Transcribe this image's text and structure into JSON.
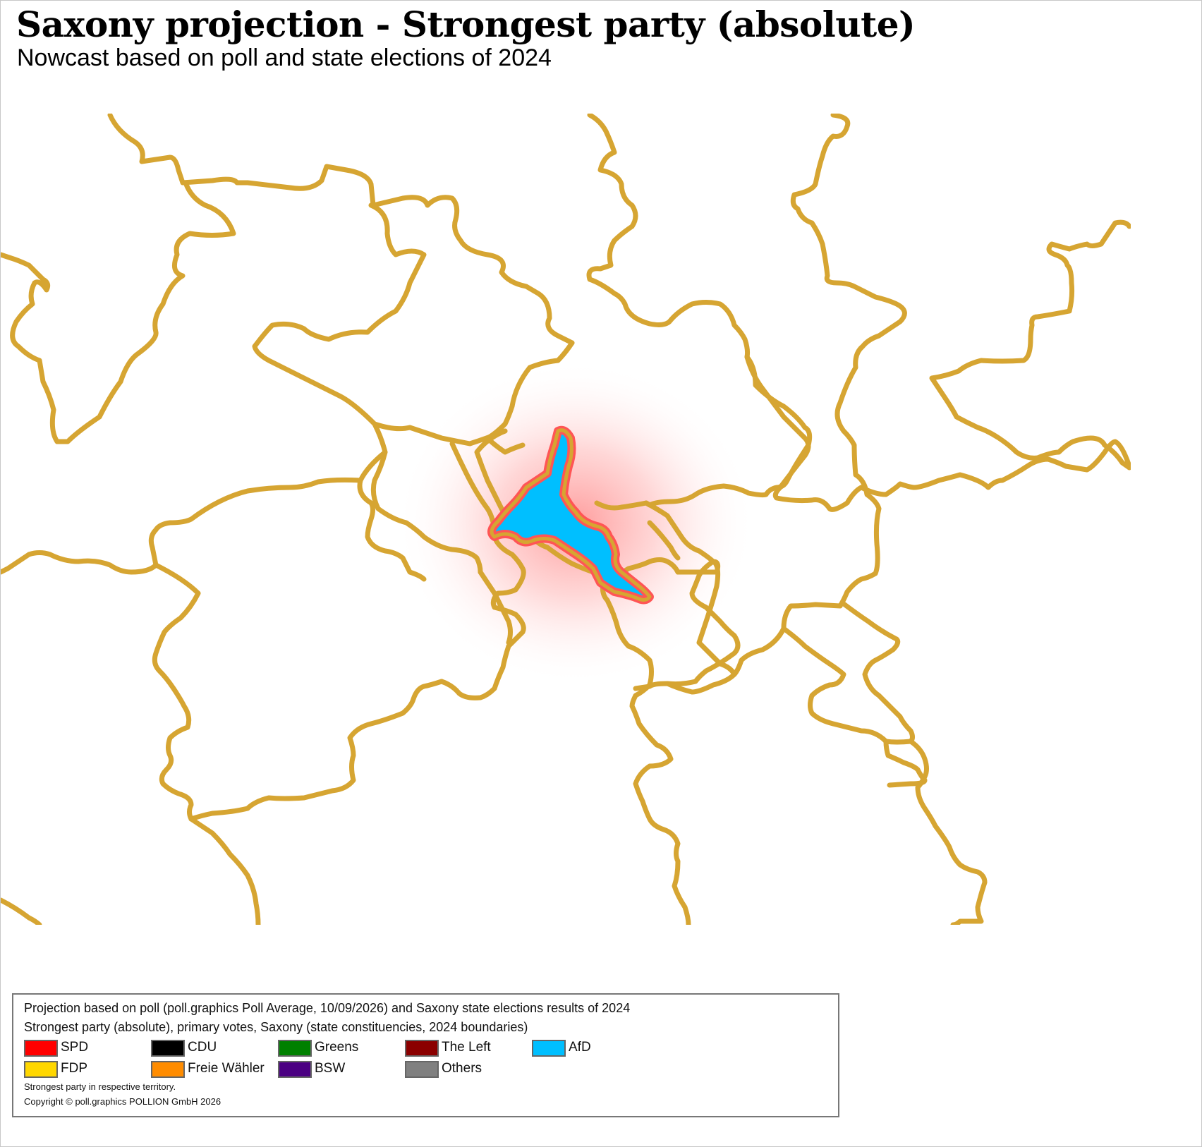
{
  "title": "Saxony projection - Strongest party (absolute)",
  "subtitle": "Nowcast based on poll and state elections of 2024",
  "map": {
    "highlighted_constituency": {
      "winner": "AfD",
      "fill_color": "#00bfff",
      "highlight_color": "#ff5555"
    },
    "boundary_color": "#d6a532"
  },
  "legend": {
    "line1": "Projection based on poll (poll.graphics Poll Average, 10/09/2026) and Saxony state elections results of 2024",
    "line2": "Strongest party (absolute), primary votes, Saxony (state constituencies, 2024 boundaries)",
    "parties": [
      {
        "name": "SPD",
        "color": "#ff0000"
      },
      {
        "name": "CDU",
        "color": "#000000"
      },
      {
        "name": "Greens",
        "color": "#008000"
      },
      {
        "name": "The Left",
        "color": "#8b0000"
      },
      {
        "name": "AfD",
        "color": "#00bfff"
      },
      {
        "name": "FDP",
        "color": "#ffd700"
      },
      {
        "name": "Freie Wähler",
        "color": "#ff8c00"
      },
      {
        "name": "BSW",
        "color": "#4b0082"
      },
      {
        "name": "Others",
        "color": "#808080"
      }
    ],
    "note": "Strongest party in respective territory.",
    "copyright": "Copyright © poll.graphics POLLION GmbH 2026"
  }
}
